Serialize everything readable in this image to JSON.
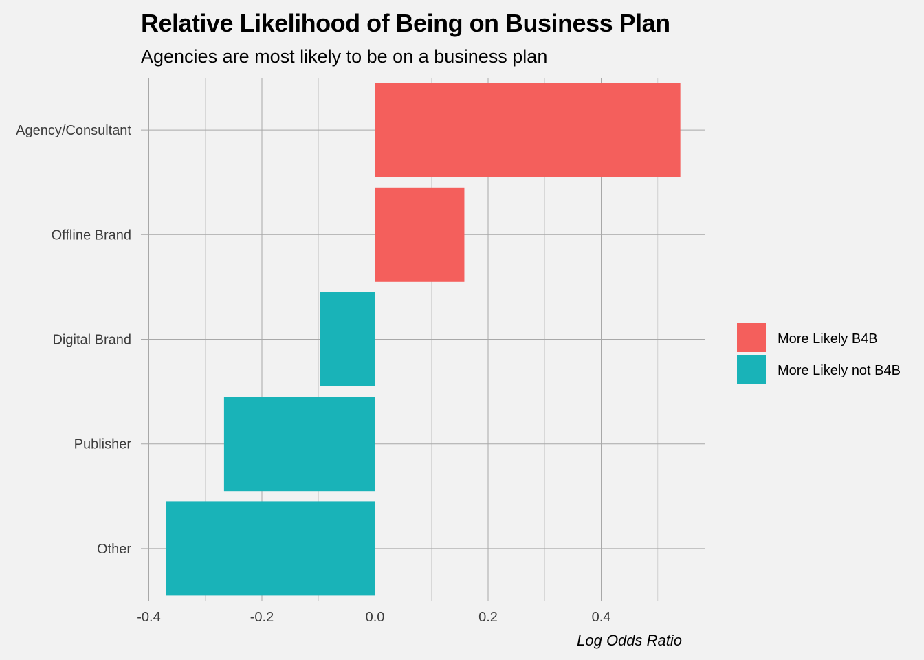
{
  "chart_data": {
    "type": "bar",
    "orientation": "horizontal",
    "title": "Relative Likelihood of Being on Business Plan",
    "subtitle": "Agencies are most likely to be on a business plan",
    "xlabel": "Log Odds Ratio",
    "ylabel": "",
    "xlim": [
      -0.42,
      0.58
    ],
    "x_ticks": [
      -0.4,
      -0.2,
      0.0,
      0.2,
      0.4
    ],
    "x_tick_labels": [
      "-0.4",
      "-0.2",
      "0.0",
      "0.2",
      "0.4"
    ],
    "grid": true,
    "legend_position": "right",
    "categories": [
      "Agency/Consultant",
      "Offline Brand",
      "Digital Brand ",
      "Publisher",
      "Other"
    ],
    "values": [
      0.54,
      0.158,
      -0.097,
      -0.267,
      -0.37
    ],
    "groups": [
      "More Likely B4B",
      "More Likely B4B",
      "More Likely not B4B",
      "More Likely not B4B",
      "More Likely not B4B"
    ],
    "legend": [
      {
        "name": "More Likely B4B",
        "color": "#f45f5c"
      },
      {
        "name": "More Likely not B4B",
        "color": "#19b3b8"
      }
    ]
  }
}
